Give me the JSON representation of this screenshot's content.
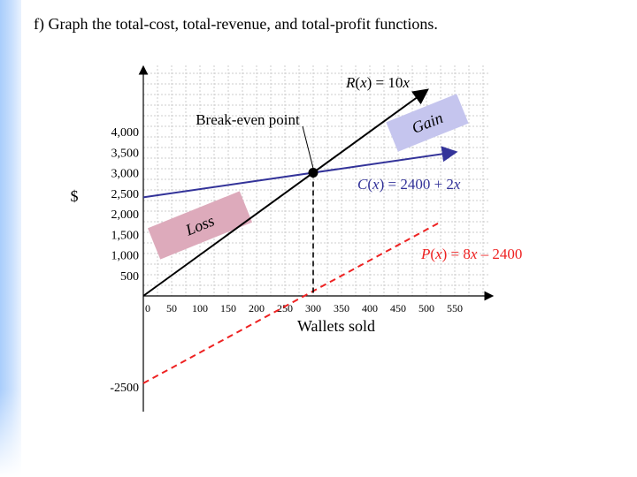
{
  "slide": {
    "heading": "f)  Graph the total-cost, total-revenue, and total-profit functions."
  },
  "colors": {
    "revenue": "#000000",
    "cost": "#333399",
    "profit": "#ee2222",
    "gain_box": "#c5c5ee",
    "loss_box": "#ddaabb",
    "grid": "#cccccc",
    "side_bar": "#a9cdfc"
  },
  "chart_data": {
    "type": "line",
    "xlabel": "Wallets sold",
    "ylabel": "$",
    "x_ticks": [
      0,
      50,
      100,
      150,
      200,
      250,
      300,
      350,
      400,
      450,
      500,
      550
    ],
    "x_tick_labels": [
      "0",
      "50",
      "100",
      "150",
      "200",
      "250",
      "300",
      "350",
      "400",
      "450",
      "500",
      "550"
    ],
    "y_ticks": [
      500,
      1000,
      1500,
      2000,
      2500,
      3000,
      3500,
      4000,
      -2500
    ],
    "y_tick_labels": [
      "500",
      "1,000",
      "1,500",
      "2,000",
      "2,500",
      "3,000",
      "3,500",
      "4,000",
      "-2500"
    ],
    "xlim": [
      0,
      560
    ],
    "grid": true,
    "series": [
      {
        "name": "R(x) = 10x",
        "key": "revenue",
        "style": "solid",
        "arrow": true,
        "points": [
          [
            0,
            0
          ],
          [
            500,
            5000
          ]
        ]
      },
      {
        "name": "C(x) = 2400 + 2x",
        "key": "cost",
        "style": "solid",
        "arrow": true,
        "points": [
          [
            0,
            2400
          ],
          [
            550,
            3500
          ]
        ]
      },
      {
        "name": "P(x) = 8x – 2400",
        "key": "profit",
        "style": "dashed",
        "arrow": false,
        "points": [
          [
            0,
            -2400
          ],
          [
            525,
            1800
          ]
        ]
      }
    ],
    "equation_labels": {
      "revenue": {
        "prefix": "R",
        "arg": "x",
        "middle": " = 10",
        "suffix": "x"
      },
      "cost": {
        "prefix": "C",
        "arg": "x",
        "middle": " = 2400 + 2",
        "suffix": "x"
      },
      "profit": {
        "prefix": "P",
        "arg": "x",
        "middle": " = 8",
        "suffix": "x",
        "tail": " – 2400"
      }
    },
    "break_even": {
      "x": 300,
      "y": 3000,
      "label": "Break-even point"
    },
    "regions": {
      "gain": "Gain",
      "loss": "Loss"
    }
  }
}
